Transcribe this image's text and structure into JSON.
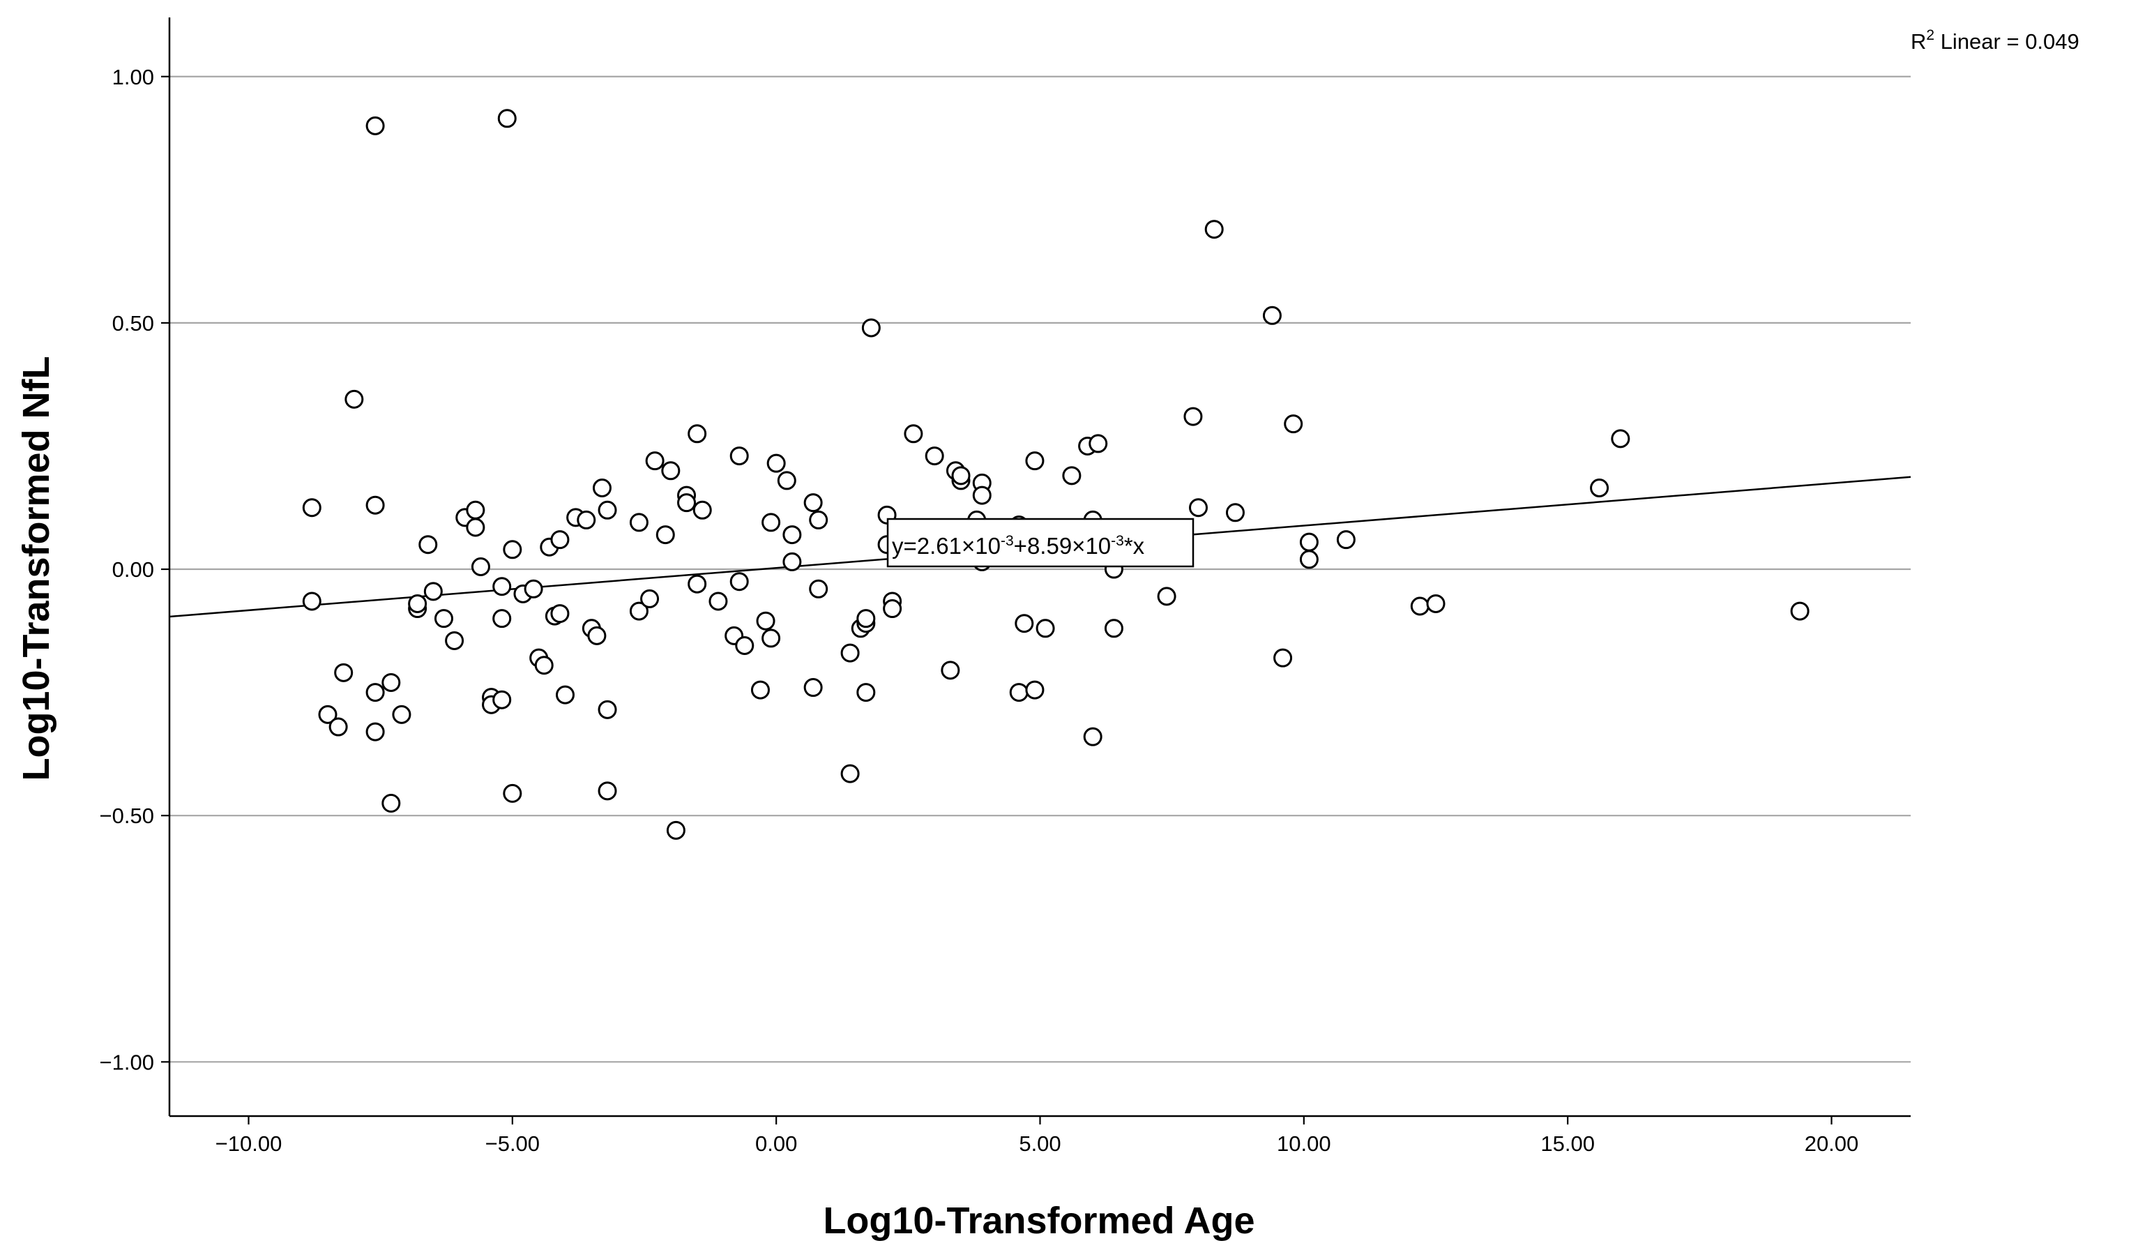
{
  "chart_data": {
    "type": "scatter",
    "xlabel": "Log10-Transformed Age",
    "ylabel": "Log10-Transformed NfL",
    "xlim": [
      -11.5,
      21.5
    ],
    "ylim": [
      -1.11,
      1.12
    ],
    "x_ticks": [
      -10,
      -5,
      0,
      5,
      10,
      15,
      20
    ],
    "y_ticks": [
      -1,
      -0.5,
      0,
      0.5,
      1
    ],
    "x_tick_labels": [
      "-10.00",
      "-5.00",
      "0.00",
      "5.00",
      "10.00",
      "15.00",
      "20.00"
    ],
    "y_tick_labels": [
      "1.00",
      "0.50",
      "0.00",
      "-0.50",
      "-1.00"
    ],
    "grid": "horizontal",
    "r2_label": "R",
    "r2_sup": "2",
    "r2_text": " Linear = 0.049",
    "fit_line": {
      "intercept": 0.00261,
      "slope": 0.00859
    },
    "equation": {
      "a": "y=2.61×10",
      "a_exp": "-3",
      "b": "+8.59×10",
      "b_exp": "-3",
      "c": "*x"
    },
    "points": [
      [
        -7.6,
        0.9
      ],
      [
        -5.1,
        0.915
      ],
      [
        -8.0,
        0.345
      ],
      [
        -8.8,
        0.125
      ],
      [
        -7.6,
        0.13
      ],
      [
        -8.8,
        -0.065
      ],
      [
        -8.2,
        -0.21
      ],
      [
        -7.6,
        -0.25
      ],
      [
        -7.3,
        -0.23
      ],
      [
        -8.5,
        -0.295
      ],
      [
        -8.3,
        -0.32
      ],
      [
        -7.6,
        -0.33
      ],
      [
        -7.1,
        -0.295
      ],
      [
        -7.3,
        -0.475
      ],
      [
        -6.8,
        -0.08
      ],
      [
        -6.8,
        -0.07
      ],
      [
        -6.6,
        0.05
      ],
      [
        -6.5,
        -0.045
      ],
      [
        -6.3,
        -0.1
      ],
      [
        -6.1,
        -0.145
      ],
      [
        -5.9,
        0.105
      ],
      [
        -5.7,
        0.12
      ],
      [
        -5.7,
        0.085
      ],
      [
        -5.6,
        0.005
      ],
      [
        -5.4,
        -0.26
      ],
      [
        -5.4,
        -0.275
      ],
      [
        -5.2,
        -0.265
      ],
      [
        -5.2,
        -0.035
      ],
      [
        -5.2,
        -0.1
      ],
      [
        -5.0,
        0.04
      ],
      [
        -5.0,
        -0.455
      ],
      [
        -4.8,
        -0.05
      ],
      [
        -4.6,
        -0.04
      ],
      [
        -4.5,
        -0.18
      ],
      [
        -4.4,
        -0.195
      ],
      [
        -4.3,
        0.045
      ],
      [
        -4.2,
        -0.095
      ],
      [
        -4.1,
        -0.09
      ],
      [
        -4.1,
        0.06
      ],
      [
        -4.0,
        -0.255
      ],
      [
        -3.8,
        0.105
      ],
      [
        -3.6,
        0.1
      ],
      [
        -3.5,
        -0.12
      ],
      [
        -3.4,
        -0.135
      ],
      [
        -3.3,
        0.165
      ],
      [
        -3.2,
        0.12
      ],
      [
        -3.2,
        -0.285
      ],
      [
        -3.2,
        -0.45
      ],
      [
        -2.6,
        0.095
      ],
      [
        -2.6,
        -0.085
      ],
      [
        -2.4,
        -0.06
      ],
      [
        -2.3,
        0.22
      ],
      [
        -2.1,
        0.07
      ],
      [
        -2.0,
        0.2
      ],
      [
        -1.9,
        -0.53
      ],
      [
        -1.7,
        0.15
      ],
      [
        -1.7,
        0.135
      ],
      [
        -1.5,
        0.275
      ],
      [
        -1.4,
        0.12
      ],
      [
        -1.5,
        -0.03
      ],
      [
        -1.1,
        -0.065
      ],
      [
        -0.7,
        0.23
      ],
      [
        -0.7,
        -0.025
      ],
      [
        -0.8,
        -0.135
      ],
      [
        -0.6,
        -0.155
      ],
      [
        -0.3,
        -0.245
      ],
      [
        -0.2,
        -0.105
      ],
      [
        -0.1,
        0.095
      ],
      [
        -0.1,
        -0.14
      ],
      [
        0.0,
        0.215
      ],
      [
        0.2,
        0.18
      ],
      [
        0.3,
        0.07
      ],
      [
        0.3,
        0.015
      ],
      [
        0.7,
        0.135
      ],
      [
        0.8,
        0.1
      ],
      [
        0.8,
        -0.04
      ],
      [
        0.7,
        -0.24
      ],
      [
        1.4,
        -0.17
      ],
      [
        1.4,
        -0.415
      ],
      [
        1.6,
        -0.12
      ],
      [
        1.7,
        -0.11
      ],
      [
        1.7,
        -0.1
      ],
      [
        1.7,
        -0.25
      ],
      [
        1.8,
        0.49
      ],
      [
        2.1,
        0.11
      ],
      [
        2.1,
        0.05
      ],
      [
        2.2,
        -0.065
      ],
      [
        2.2,
        -0.08
      ],
      [
        2.6,
        0.275
      ],
      [
        3.0,
        0.23
      ],
      [
        3.4,
        0.2
      ],
      [
        3.3,
        -0.205
      ],
      [
        3.5,
        0.18
      ],
      [
        3.5,
        0.19
      ],
      [
        3.8,
        0.1
      ],
      [
        3.9,
        0.015
      ],
      [
        3.9,
        0.175
      ],
      [
        3.9,
        0.15
      ],
      [
        4.6,
        0.09
      ],
      [
        4.6,
        -0.25
      ],
      [
        4.7,
        -0.11
      ],
      [
        4.9,
        0.22
      ],
      [
        4.9,
        -0.245
      ],
      [
        5.1,
        -0.12
      ],
      [
        5.6,
        0.19
      ],
      [
        5.9,
        0.25
      ],
      [
        6.0,
        0.1
      ],
      [
        6.0,
        -0.34
      ],
      [
        6.1,
        0.255
      ],
      [
        6.4,
        0.0
      ],
      [
        6.4,
        -0.12
      ],
      [
        7.4,
        -0.055
      ],
      [
        7.9,
        0.31
      ],
      [
        8.0,
        0.125
      ],
      [
        8.3,
        0.69
      ],
      [
        8.7,
        0.115
      ],
      [
        9.4,
        0.515
      ],
      [
        9.6,
        -0.18
      ],
      [
        9.8,
        0.295
      ],
      [
        10.1,
        0.055
      ],
      [
        10.1,
        0.02
      ],
      [
        10.8,
        0.06
      ],
      [
        12.2,
        -0.075
      ],
      [
        12.5,
        -0.07
      ],
      [
        15.6,
        0.165
      ],
      [
        16.0,
        0.265
      ],
      [
        19.4,
        -0.085
      ]
    ]
  }
}
